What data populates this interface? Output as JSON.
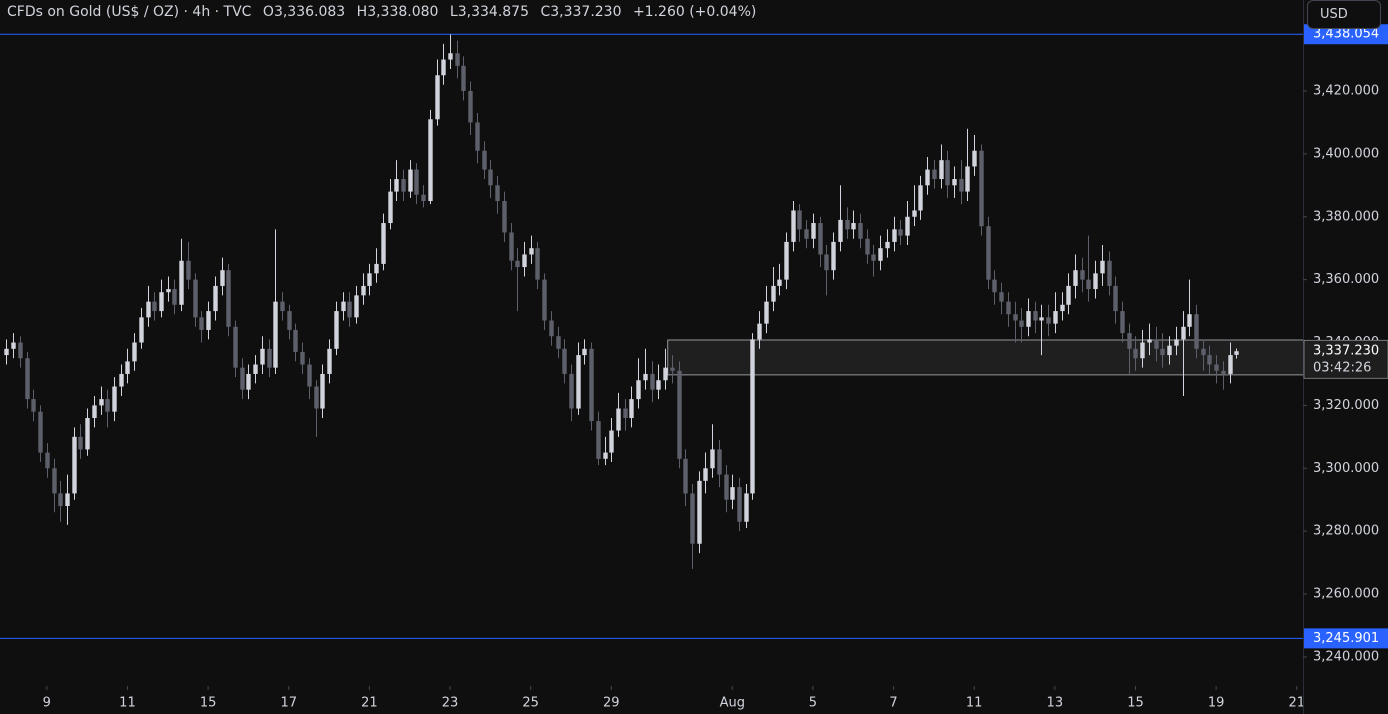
{
  "chart_data": {
    "type": "candlestick",
    "title": "CFDs on Gold (US$ / OZ) · 4h · TVC",
    "ohlc_prefix": [
      "O",
      "H",
      "L",
      "C"
    ],
    "ohlc_labels": [
      "3,336.083",
      "3,338.080",
      "3,334.875",
      "3,337.230"
    ],
    "change_label": "+1.260 (+0.04%)",
    "currency": "USD",
    "countdown": "03:42:26",
    "up_color": "#d1d4dc",
    "down_color": "#5d606b",
    "grid": false,
    "open": [
      3336,
      3338,
      3340,
      3335,
      3322,
      3318,
      3305,
      3300,
      3292,
      3288,
      3292,
      3310,
      3306,
      3316,
      3320,
      3322,
      3318,
      3326,
      3330,
      3334,
      3340,
      3348,
      3353,
      3350,
      3356,
      3357,
      3352,
      3366,
      3360,
      3348,
      3344,
      3350,
      3358,
      3363,
      3345,
      3332,
      3325,
      3330,
      3333,
      3338,
      3332,
      3353,
      3350,
      3344,
      3337,
      3333,
      3326,
      3319,
      3330,
      3338,
      3350,
      3353,
      3348,
      3355,
      3358,
      3362,
      3365,
      3378,
      3388,
      3392,
      3388,
      3395,
      3387,
      3385,
      3411,
      3425,
      3430,
      3432,
      3428,
      3420,
      3410,
      3401,
      3395,
      3390,
      3385,
      3375,
      3366,
      3364,
      3368,
      3370,
      3360,
      3347,
      3342,
      3338,
      3330,
      3319,
      3336,
      3338,
      3315,
      3303,
      3305,
      3312,
      3319,
      3316,
      3322,
      3328,
      3330,
      3325,
      3328,
      3332,
      3331,
      3303,
      3292,
      3276,
      3296,
      3300,
      3306,
      3298,
      3290,
      3294,
      3283,
      3292,
      3341,
      3346,
      3353,
      3358,
      3360,
      3372,
      3382,
      3376,
      3373,
      3378,
      3368,
      3363,
      3372,
      3379,
      3376,
      3378,
      3373,
      3368,
      3366,
      3370,
      3372,
      3376,
      3374,
      3380,
      3382,
      3390,
      3395,
      3392,
      3398,
      3390,
      3392,
      3388,
      3396,
      3401,
      3377,
      3360,
      3356,
      3353,
      3349,
      3347,
      3345,
      3350,
      3347,
      3348,
      3346,
      3350,
      3352,
      3358,
      3363,
      3360,
      3357,
      3362,
      3366,
      3358,
      3350,
      3343,
      3338,
      3335,
      3340,
      3341,
      3338,
      3336,
      3339,
      3341,
      3345,
      3349,
      3338,
      3336,
      3333,
      3331,
      3330,
      3336.083
    ],
    "high": [
      3341,
      3343,
      3342,
      3337,
      3325,
      3320,
      3308,
      3303,
      3296,
      3298,
      3313,
      3314,
      3319,
      3323,
      3326,
      3325,
      3329,
      3333,
      3338,
      3343,
      3351,
      3358,
      3356,
      3360,
      3361,
      3360,
      3373,
      3372,
      3362,
      3350,
      3353,
      3361,
      3367,
      3365,
      3347,
      3335,
      3333,
      3336,
      3342,
      3341,
      3376,
      3356,
      3352,
      3346,
      3340,
      3335,
      3328,
      3333,
      3341,
      3353,
      3356,
      3356,
      3358,
      3362,
      3365,
      3370,
      3381,
      3392,
      3398,
      3395,
      3398,
      3397,
      3390,
      3414,
      3430,
      3435,
      3438,
      3436,
      3431,
      3423,
      3413,
      3404,
      3398,
      3393,
      3388,
      3378,
      3370,
      3372,
      3374,
      3372,
      3362,
      3350,
      3345,
      3341,
      3333,
      3340,
      3341,
      3340,
      3318,
      3310,
      3316,
      3324,
      3322,
      3326,
      3335,
      3338,
      3334,
      3333,
      3338,
      3336,
      3334,
      3306,
      3295,
      3299,
      3305,
      3314,
      3309,
      3301,
      3298,
      3297,
      3295,
      3343,
      3350,
      3358,
      3364,
      3365,
      3375,
      3385,
      3384,
      3379,
      3381,
      3380,
      3371,
      3375,
      3390,
      3383,
      3382,
      3381,
      3376,
      3371,
      3374,
      3376,
      3380,
      3379,
      3385,
      3390,
      3393,
      3399,
      3398,
      3403,
      3401,
      3396,
      3398,
      3408,
      3406,
      3403,
      3380,
      3363,
      3359,
      3356,
      3353,
      3351,
      3354,
      3353,
      3352,
      3352,
      3356,
      3356,
      3362,
      3368,
      3367,
      3374,
      3366,
      3371,
      3369,
      3361,
      3353,
      3346,
      3342,
      3344,
      3346,
      3345,
      3343,
      3342,
      3345,
      3350,
      3360,
      3352,
      3341,
      3339,
      3336,
      3334,
      3340,
      3338.08
    ],
    "low": [
      3333,
      3335,
      3332,
      3319,
      3315,
      3302,
      3297,
      3286,
      3283,
      3282,
      3290,
      3303,
      3304,
      3313,
      3317,
      3313,
      3315,
      3323,
      3327,
      3331,
      3338,
      3345,
      3347,
      3348,
      3353,
      3349,
      3350,
      3357,
      3345,
      3340,
      3341,
      3347,
      3355,
      3342,
      3329,
      3322,
      3322,
      3327,
      3330,
      3329,
      3330,
      3347,
      3341,
      3334,
      3330,
      3322,
      3310,
      3316,
      3327,
      3336,
      3347,
      3345,
      3346,
      3352,
      3355,
      3359,
      3363,
      3376,
      3385,
      3385,
      3386,
      3384,
      3383,
      3384,
      3409,
      3422,
      3427,
      3424,
      3417,
      3406,
      3397,
      3392,
      3386,
      3381,
      3372,
      3363,
      3350,
      3361,
      3365,
      3357,
      3344,
      3339,
      3335,
      3327,
      3315,
      3317,
      3333,
      3312,
      3301,
      3301,
      3302,
      3310,
      3312,
      3313,
      3319,
      3325,
      3321,
      3322,
      3325,
      3327,
      3300,
      3288,
      3268,
      3273,
      3292,
      3297,
      3294,
      3286,
      3287,
      3280,
      3281,
      3290,
      3338,
      3343,
      3350,
      3355,
      3357,
      3369,
      3372,
      3370,
      3370,
      3364,
      3355,
      3360,
      3369,
      3373,
      3373,
      3370,
      3365,
      3361,
      3363,
      3367,
      3369,
      3371,
      3371,
      3377,
      3379,
      3387,
      3389,
      3389,
      3386,
      3386,
      3384,
      3385,
      3393,
      3374,
      3357,
      3352,
      3349,
      3345,
      3340,
      3340,
      3342,
      3343,
      3336,
      3342,
      3343,
      3347,
      3349,
      3354,
      3356,
      3353,
      3354,
      3358,
      3355,
      3346,
      3340,
      3330,
      3331,
      3332,
      3336,
      3334,
      3332,
      3333,
      3336,
      3323,
      3342,
      3335,
      3331,
      3330,
      3327,
      3325,
      3327,
      3334.875
    ],
    "close": [
      3338,
      3340,
      3335,
      3322,
      3318,
      3305,
      3300,
      3292,
      3288,
      3292,
      3310,
      3306,
      3316,
      3320,
      3322,
      3318,
      3326,
      3330,
      3334,
      3340,
      3348,
      3353,
      3350,
      3356,
      3357,
      3352,
      3366,
      3360,
      3348,
      3344,
      3350,
      3358,
      3363,
      3345,
      3332,
      3325,
      3330,
      3333,
      3338,
      3332,
      3353,
      3350,
      3344,
      3337,
      3333,
      3326,
      3319,
      3330,
      3338,
      3350,
      3353,
      3348,
      3355,
      3358,
      3362,
      3365,
      3378,
      3388,
      3392,
      3388,
      3395,
      3387,
      3385,
      3411,
      3425,
      3430,
      3432,
      3428,
      3420,
      3410,
      3401,
      3395,
      3390,
      3385,
      3375,
      3366,
      3364,
      3368,
      3370,
      3360,
      3347,
      3342,
      3338,
      3330,
      3319,
      3336,
      3338,
      3315,
      3303,
      3305,
      3312,
      3319,
      3316,
      3322,
      3328,
      3330,
      3325,
      3328,
      3332,
      3331,
      3303,
      3292,
      3276,
      3296,
      3300,
      3306,
      3298,
      3290,
      3294,
      3283,
      3292,
      3341,
      3346,
      3353,
      3358,
      3360,
      3372,
      3382,
      3376,
      3373,
      3378,
      3368,
      3363,
      3372,
      3379,
      3376,
      3378,
      3373,
      3368,
      3366,
      3370,
      3372,
      3376,
      3374,
      3380,
      3382,
      3390,
      3395,
      3392,
      3398,
      3390,
      3392,
      3388,
      3396,
      3401,
      3377,
      3360,
      3356,
      3353,
      3349,
      3347,
      3345,
      3350,
      3347,
      3348,
      3346,
      3350,
      3352,
      3358,
      3363,
      3360,
      3357,
      3362,
      3366,
      3358,
      3350,
      3343,
      3338,
      3335,
      3340,
      3341,
      3338,
      3336,
      3339,
      3341,
      3345,
      3349,
      3338,
      3336,
      3333,
      3331,
      3330,
      3336,
      3337.23
    ],
    "xlim": [
      -0.967,
      192.93
    ],
    "xticks": [
      {
        "value": 6,
        "label": "9"
      },
      {
        "value": 18,
        "label": "11"
      },
      {
        "value": 30,
        "label": "15"
      },
      {
        "value": 42,
        "label": "17"
      },
      {
        "value": 54,
        "label": "21"
      },
      {
        "value": 66,
        "label": "23"
      },
      {
        "value": 78,
        "label": "25"
      },
      {
        "value": 90,
        "label": "29"
      },
      {
        "value": 108,
        "label": "Aug"
      },
      {
        "value": 120,
        "label": "5"
      },
      {
        "value": 132,
        "label": "7"
      },
      {
        "value": 144,
        "label": "11"
      },
      {
        "value": 156,
        "label": "13"
      },
      {
        "value": 168,
        "label": "15"
      },
      {
        "value": 180,
        "label": "19"
      },
      {
        "value": 192,
        "label": "21"
      }
    ],
    "ylim": [
      3230.75,
      3448.94
    ],
    "yticks": [
      {
        "value": 3240,
        "label": "3,240.000"
      },
      {
        "value": 3260,
        "label": "3,260.000"
      },
      {
        "value": 3280,
        "label": "3,280.000"
      },
      {
        "value": 3300,
        "label": "3,300.000"
      },
      {
        "value": 3320,
        "label": "3,320.000"
      },
      {
        "value": 3340,
        "label": "3,340.000"
      },
      {
        "value": 3360,
        "label": "3,360.000"
      },
      {
        "value": 3380,
        "label": "3,380.000"
      },
      {
        "value": 3400,
        "label": "3,400.000"
      },
      {
        "value": 3420,
        "label": "3,420.000"
      }
    ],
    "level_color": "#2962ff",
    "levels": [
      {
        "value": 3438.054,
        "label": "3,438.054"
      },
      {
        "value": 3245.901,
        "label": "3,245.901"
      }
    ],
    "zone": {
      "from": 98.4,
      "high": 3340.8,
      "low": 3329.7
    }
  }
}
